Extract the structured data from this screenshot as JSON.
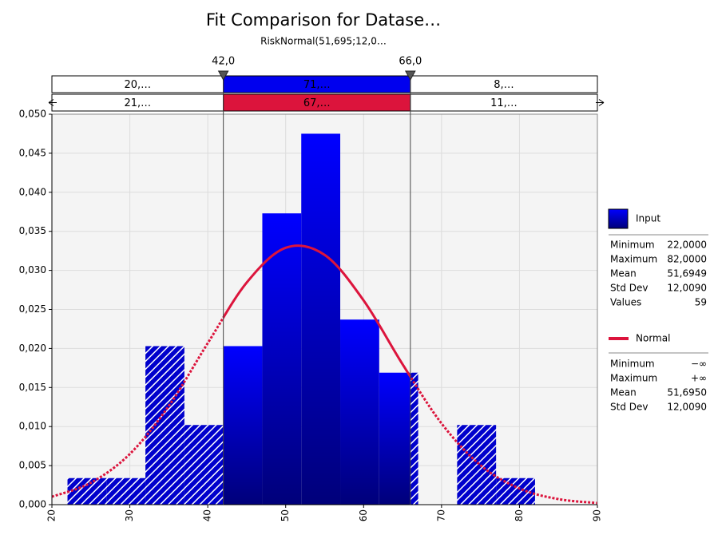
{
  "chart_data": {
    "type": "histogram",
    "title": "Fit Comparison for Datase…",
    "subtitle": "RiskNormal(51,695;12,0…",
    "xlim": [
      20,
      90
    ],
    "xticks": [
      20,
      30,
      40,
      50,
      60,
      70,
      80,
      90
    ],
    "ylim": [
      0,
      0.05
    ],
    "yticks": [
      {
        "value": 0,
        "label": "0,000"
      },
      {
        "value": 0.005,
        "label": "0,005"
      },
      {
        "value": 0.01,
        "label": "0,010"
      },
      {
        "value": 0.015,
        "label": "0,015"
      },
      {
        "value": 0.02,
        "label": "0,020"
      },
      {
        "value": 0.025,
        "label": "0,025"
      },
      {
        "value": 0.03,
        "label": "0,030"
      },
      {
        "value": 0.035,
        "label": "0,035"
      },
      {
        "value": 0.04,
        "label": "0,040"
      },
      {
        "value": 0.045,
        "label": "0,045"
      },
      {
        "value": 0.05,
        "label": "0,050"
      }
    ],
    "grid": true,
    "name": "Input",
    "color": "#0000ee",
    "bins": [
      22,
      27,
      32,
      37,
      42,
      47,
      52,
      57,
      62,
      67,
      72,
      77,
      82
    ],
    "values": [
      0.0034,
      0.0034,
      0.0203,
      0.0102,
      0.0203,
      0.0373,
      0.0475,
      0.0237,
      0.0169,
      0,
      0.0102,
      0.0034
    ],
    "curve": {
      "name": "Normal",
      "color": "#dc143c",
      "x": [
        20,
        25,
        30,
        35,
        40,
        45,
        50,
        55,
        60,
        65,
        70,
        75,
        80,
        85,
        90
      ],
      "values": [
        0.00102,
        0.00281,
        0.00649,
        0.01264,
        0.02068,
        0.02844,
        0.03289,
        0.03198,
        0.02615,
        0.01798,
        0.0104,
        0.00505,
        0.00207,
        0.00071,
        0.00021
      ]
    },
    "delimiters": [
      {
        "value": 42,
        "label": "42,0"
      },
      {
        "value": 66,
        "label": "66,0"
      }
    ],
    "input_probabilities": [
      "20,…",
      "71,…",
      "8,…"
    ],
    "normal_probabilities": [
      "21,…",
      "67,…",
      "11,…"
    ],
    "input_stats": [
      {
        "name": "Minimum",
        "value": "22,0000"
      },
      {
        "name": "Maximum",
        "value": "82,0000"
      },
      {
        "name": "Mean",
        "value": "51,6949"
      },
      {
        "name": "Std Dev",
        "value": "12,0090"
      },
      {
        "name": "Values",
        "value": "59"
      }
    ],
    "normal_stats": [
      {
        "name": "Minimum",
        "value": "−∞"
      },
      {
        "name": "Maximum",
        "value": "+∞"
      },
      {
        "name": "Mean",
        "value": "51,6950"
      },
      {
        "name": "Std Dev",
        "value": "12,0090"
      }
    ]
  }
}
